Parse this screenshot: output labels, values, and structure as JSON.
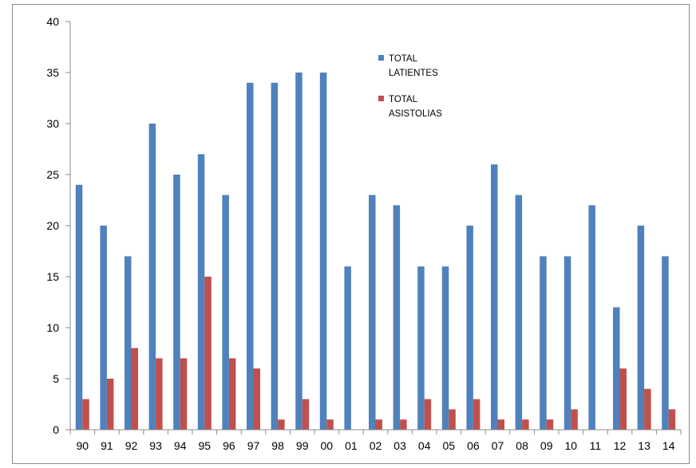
{
  "chart_data": {
    "type": "bar",
    "title": "",
    "xlabel": "",
    "ylabel": "",
    "categories": [
      "90",
      "91",
      "92",
      "93",
      "94",
      "95",
      "96",
      "97",
      "98",
      "99",
      "00",
      "01",
      "02",
      "03",
      "04",
      "05",
      "06",
      "07",
      "08",
      "09",
      "10",
      "11",
      "12",
      "13",
      "14"
    ],
    "series": [
      {
        "name": "TOTAL LATIENTES",
        "legend_lines": [
          "TOTAL",
          "LATIENTES"
        ],
        "color": "#4F81BD",
        "values": [
          24,
          20,
          17,
          30,
          25,
          27,
          23,
          34,
          34,
          35,
          35,
          16,
          23,
          22,
          16,
          16,
          20,
          26,
          23,
          17,
          17,
          22,
          12,
          20,
          17
        ]
      },
      {
        "name": "TOTAL ASISTOLIAS",
        "legend_lines": [
          "TOTAL",
          "ASISTOLIAS"
        ],
        "color": "#C0504D",
        "values": [
          3,
          5,
          8,
          7,
          7,
          15,
          7,
          6,
          1,
          3,
          1,
          0,
          1,
          1,
          3,
          2,
          3,
          1,
          1,
          1,
          2,
          0,
          6,
          4,
          2
        ]
      }
    ],
    "ylim": [
      0,
      40
    ],
    "yticks": [
      "0",
      "5",
      "10",
      "15",
      "20",
      "25",
      "30",
      "35",
      "40"
    ],
    "grid": false,
    "legend_position": "top-center"
  }
}
